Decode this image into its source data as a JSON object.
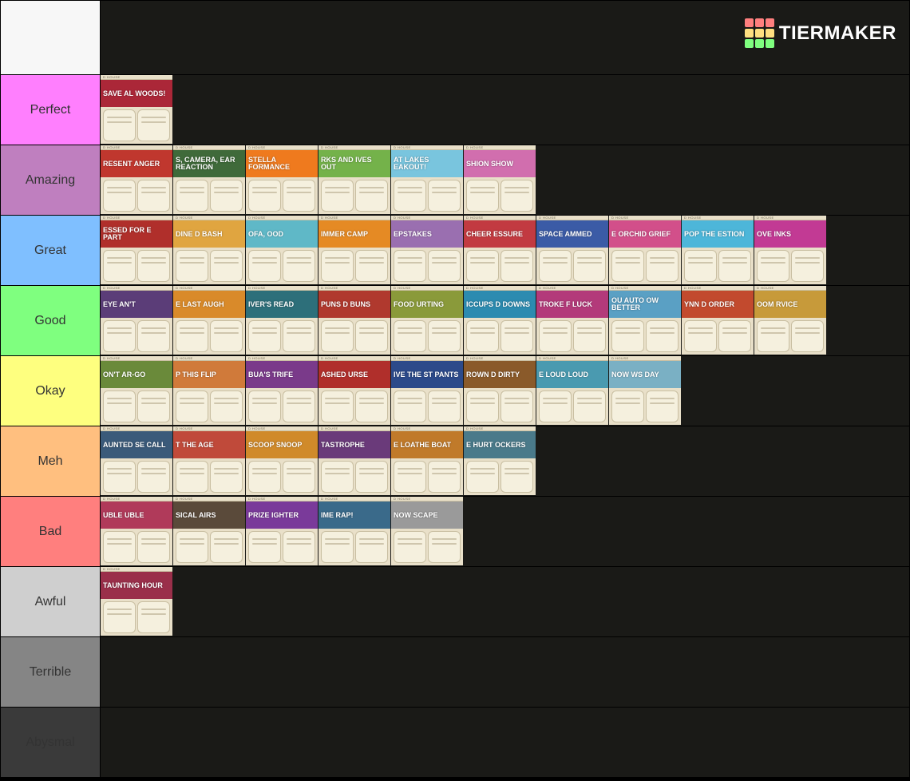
{
  "brand": "TIERMAKER",
  "logo_colors": [
    "#fe7f7e",
    "#fe7f7e",
    "#fe7f7e",
    "#ffdf80",
    "#ffdf80",
    "#ffdf80",
    "#7fff7f",
    "#7fff7f",
    "#7fff7f"
  ],
  "item_topbar_text": "D HOUSE",
  "tiers": [
    {
      "label": "Perfect",
      "color": "#ff7ffe",
      "items": [
        {
          "title": "SAVE AL WOODS!",
          "bg": "#ab2738"
        }
      ]
    },
    {
      "label": "Amazing",
      "color": "#bf7fbf",
      "items": [
        {
          "title": "RESENT ANGER",
          "bg": "#c0372e"
        },
        {
          "title": "S, CAMERA, EAR REACTION",
          "bg": "#3f6a3a"
        },
        {
          "title": "STELLA FORMANCE",
          "bg": "#ef7a1e"
        },
        {
          "title": "RKS AND IVES OUT",
          "bg": "#74b24a"
        },
        {
          "title": "AT LAKES EAKOUT!",
          "bg": "#79c5de"
        },
        {
          "title": "SHION SHOW",
          "bg": "#d16eae"
        }
      ]
    },
    {
      "label": "Great",
      "color": "#7fbfff",
      "items": [
        {
          "title": "ESSED FOR E PART",
          "bg": "#b02f2b"
        },
        {
          "title": "DINE D BASH",
          "bg": "#e0a540"
        },
        {
          "title": "OFA, OOD",
          "bg": "#5fb8c7"
        },
        {
          "title": "IMMER CAMP",
          "bg": "#e58a24"
        },
        {
          "title": "EPSTAKES",
          "bg": "#9a6fb0"
        },
        {
          "title": "CHEER ESSURE",
          "bg": "#c23a41"
        },
        {
          "title": "SPACE AMMED",
          "bg": "#3b5ba6"
        },
        {
          "title": "E ORCHID GRIEF",
          "bg": "#d24f8a"
        },
        {
          "title": "POP THE ESTION",
          "bg": "#4db6d9"
        },
        {
          "title": "OVE INKS",
          "bg": "#c23a94"
        }
      ]
    },
    {
      "label": "Good",
      "color": "#7fff7f",
      "items": [
        {
          "title": "EYE AN'T",
          "bg": "#5b3d78"
        },
        {
          "title": "E LAST AUGH",
          "bg": "#d98a2a"
        },
        {
          "title": "IVER'S READ",
          "bg": "#2d6f7a"
        },
        {
          "title": "PUNS D BUNS",
          "bg": "#b0392e"
        },
        {
          "title": "FOOD URTING",
          "bg": "#8a9a3a"
        },
        {
          "title": "ICCUPS D DOWNS",
          "bg": "#2c8bb0"
        },
        {
          "title": "TROKE F LUCK",
          "bg": "#b33a7a"
        },
        {
          "title": "OU AUTO OW BETTER",
          "bg": "#5aa0c4"
        },
        {
          "title": "YNN D ORDER",
          "bg": "#c24a2e"
        },
        {
          "title": "OOM RVICE",
          "bg": "#c79a3a"
        }
      ]
    },
    {
      "label": "Okay",
      "color": "#feff7f",
      "items": [
        {
          "title": "ON'T AR-GO",
          "bg": "#6a8a3a"
        },
        {
          "title": "P THIS FLIP",
          "bg": "#d07a3a"
        },
        {
          "title": "BUA'S TRIFE",
          "bg": "#7a3a8a"
        },
        {
          "title": "ASHED URSE",
          "bg": "#b02f2b"
        },
        {
          "title": "IVE THE ST PANTS",
          "bg": "#2c4a8a"
        },
        {
          "title": "ROWN D DIRTY",
          "bg": "#8a5a2a"
        },
        {
          "title": "E LOUD LOUD",
          "bg": "#4a9ab0"
        },
        {
          "title": "NOW WS DAY",
          "bg": "#7ab0c4"
        }
      ]
    },
    {
      "label": "Meh",
      "color": "#ffbf7f",
      "items": [
        {
          "title": "AUNTED SE CALL",
          "bg": "#3a5a7a"
        },
        {
          "title": "T THE AGE",
          "bg": "#c04a3a"
        },
        {
          "title": "SCOOP SNOOP",
          "bg": "#d08a2a"
        },
        {
          "title": "TASTROPHE",
          "bg": "#6a3a7a"
        },
        {
          "title": "E LOATHE BOAT",
          "bg": "#c07a2a"
        },
        {
          "title": "E HURT OCKERS",
          "bg": "#4a7a8a"
        }
      ]
    },
    {
      "label": "Bad",
      "color": "#ff7f7e",
      "items": [
        {
          "title": "UBLE UBLE",
          "bg": "#b03a5a"
        },
        {
          "title": "SICAL AIRS",
          "bg": "#5a4a3a"
        },
        {
          "title": "PRIZE IGHTER",
          "bg": "#7a3a9a"
        },
        {
          "title": "IME RAP!",
          "bg": "#3a6a8a"
        },
        {
          "title": "NOW SCAPE",
          "bg": "#9a9a9a"
        }
      ]
    },
    {
      "label": "Awful",
      "color": "#cfcfcf",
      "items": [
        {
          "title": "TAUNTING HOUR",
          "bg": "#9a2f4a"
        }
      ]
    },
    {
      "label": "Terrible",
      "color": "#858585",
      "items": []
    },
    {
      "label": "Abysmal",
      "color": "#3a3a3a",
      "items": []
    }
  ]
}
